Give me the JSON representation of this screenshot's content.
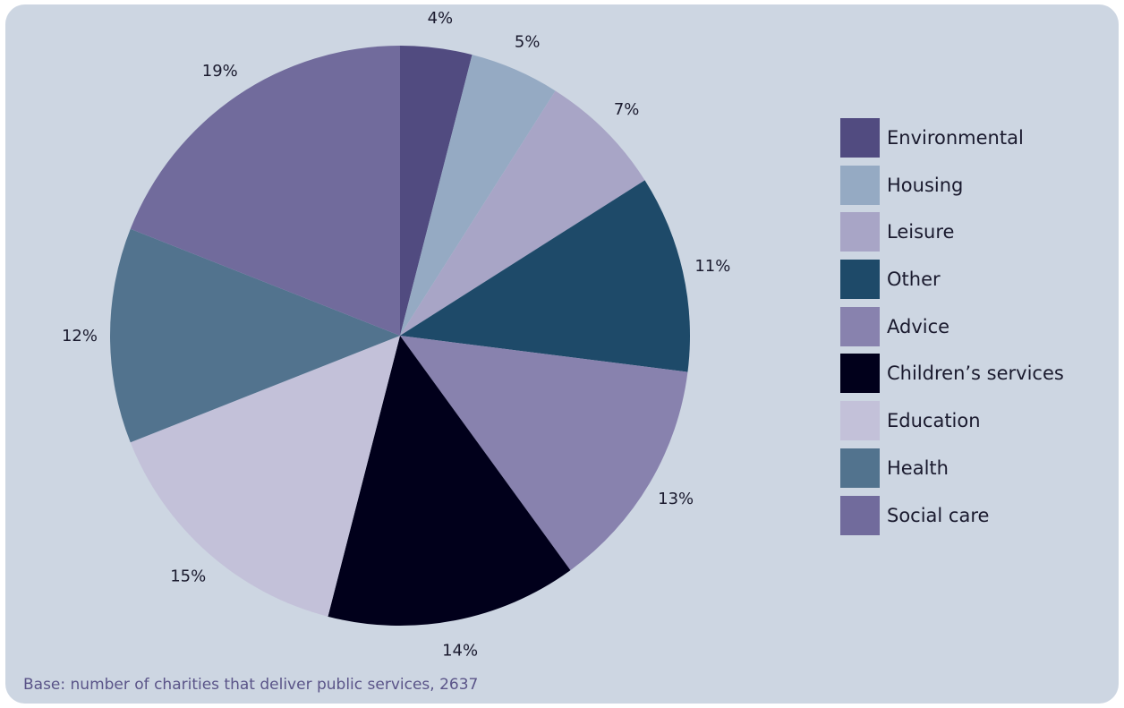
{
  "chart_data": {
    "type": "pie",
    "slices": [
      {
        "label": "Environmental",
        "value": 4,
        "display": "4%",
        "color": "#514b80"
      },
      {
        "label": "Housing",
        "value": 5,
        "display": "5%",
        "color": "#95aac3"
      },
      {
        "label": "Leisure",
        "value": 7,
        "display": "7%",
        "color": "#a8a5c6"
      },
      {
        "label": "Other",
        "value": 11,
        "display": "11%",
        "color": "#1e4a69"
      },
      {
        "label": "Advice",
        "value": 13,
        "display": "13%",
        "color": "#8882ae"
      },
      {
        "label": "Children’s services",
        "value": 14,
        "display": "14%",
        "color": "#01001b"
      },
      {
        "label": "Education",
        "value": 15,
        "display": "15%",
        "color": "#c3c1d9"
      },
      {
        "label": "Health",
        "value": 12,
        "display": "12%",
        "color": "#52738e"
      },
      {
        "label": "Social care",
        "value": 19,
        "display": "19%",
        "color": "#716b9c"
      }
    ],
    "legend_position": "right"
  },
  "note": "Base: number of charities that deliver public services, 2637"
}
